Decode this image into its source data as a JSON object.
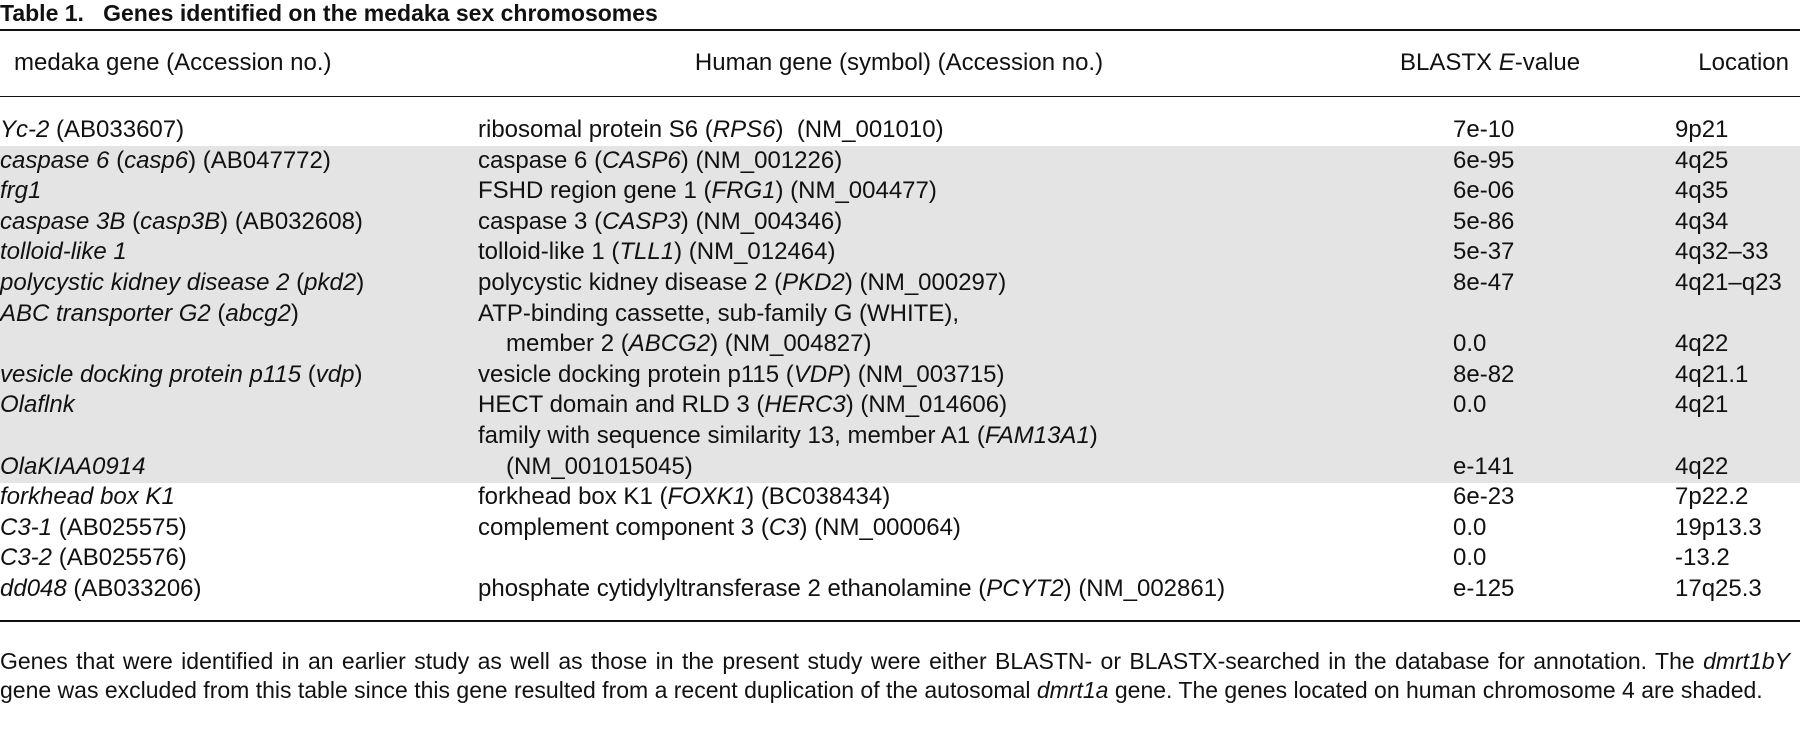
{
  "table": {
    "label": "Table 1.",
    "title": "Genes identified on the medaka sex chromosomes",
    "header": [
      "medaka gene (Accession no.)",
      "Human gene (symbol) (Accession no.)",
      [
        {
          "text": "BLASTX "
        },
        {
          "text": "E",
          "italic": true
        },
        {
          "text": "-value"
        }
      ],
      "Location"
    ],
    "rows": [
      {
        "shaded": false,
        "cells": [
          [
            [
              {
                "text": "Yc-2",
                "italic": true
              },
              {
                "text": " (AB033607)"
              }
            ]
          ],
          [
            [
              {
                "text": "ribosomal protein S6 ("
              },
              {
                "text": "RPS6",
                "italic": true
              },
              {
                "text": ")  (NM_001010)"
              }
            ]
          ],
          "7e-10",
          "9p21"
        ]
      },
      {
        "shaded": true,
        "cells": [
          [
            [
              {
                "text": "caspase 6",
                "italic": true
              },
              {
                "text": " ("
              },
              {
                "text": "casp6",
                "italic": true
              },
              {
                "text": ") (AB047772)"
              }
            ]
          ],
          [
            [
              {
                "text": "caspase 6 ("
              },
              {
                "text": "CASP6",
                "italic": true
              },
              {
                "text": ") (NM_001226)"
              }
            ]
          ],
          "6e-95",
          "4q25"
        ]
      },
      {
        "shaded": true,
        "cells": [
          [
            [
              {
                "text": "frg1",
                "italic": true
              }
            ]
          ],
          [
            [
              {
                "text": "FSHD region gene 1 ("
              },
              {
                "text": "FRG1",
                "italic": true
              },
              {
                "text": ") (NM_004477)"
              }
            ]
          ],
          "6e-06",
          "4q35"
        ]
      },
      {
        "shaded": true,
        "cells": [
          [
            [
              {
                "text": "caspase 3B",
                "italic": true
              },
              {
                "text": " ("
              },
              {
                "text": "casp3B",
                "italic": true
              },
              {
                "text": ") (AB032608)"
              }
            ]
          ],
          [
            [
              {
                "text": "caspase 3 ("
              },
              {
                "text": "CASP3",
                "italic": true
              },
              {
                "text": ") (NM_004346)"
              }
            ]
          ],
          "5e-86",
          "4q34"
        ]
      },
      {
        "shaded": true,
        "cells": [
          [
            [
              {
                "text": "tolloid-like 1",
                "italic": true
              }
            ]
          ],
          [
            [
              {
                "text": "tolloid-like 1 ("
              },
              {
                "text": "TLL1",
                "italic": true
              },
              {
                "text": ") (NM_012464)"
              }
            ]
          ],
          "5e-37",
          "4q32–33"
        ]
      },
      {
        "shaded": true,
        "cells": [
          [
            [
              {
                "text": "polycystic kidney disease 2",
                "italic": true
              },
              {
                "text": " ("
              },
              {
                "text": "pkd2",
                "italic": true
              },
              {
                "text": ")"
              }
            ]
          ],
          [
            [
              {
                "text": "polycystic kidney disease 2 ("
              },
              {
                "text": "PKD2",
                "italic": true
              },
              {
                "text": ") (NM_000297)"
              }
            ]
          ],
          "8e-47",
          "4q21–q23"
        ]
      },
      {
        "shaded": true,
        "cells": [
          [
            [
              {
                "text": "ABC transporter G2",
                "italic": true
              },
              {
                "text": " ("
              },
              {
                "text": "abcg2",
                "italic": true
              },
              {
                "text": ")"
              }
            ]
          ],
          [
            "ATP-binding cassette, sub-family G (WHITE),",
            [
              {
                "text": "member 2 ("
              },
              {
                "text": "ABCG2",
                "italic": true
              },
              {
                "text": ") (NM_004827)"
              }
            ]
          ],
          [
            null,
            "0.0"
          ],
          [
            null,
            "4q22"
          ]
        ]
      },
      {
        "shaded": true,
        "cells": [
          [
            [
              {
                "text": "vesicle docking protein p115",
                "italic": true
              },
              {
                "text": " ("
              },
              {
                "text": "vdp",
                "italic": true
              },
              {
                "text": ")"
              }
            ]
          ],
          [
            [
              {
                "text": "vesicle docking protein p115 ("
              },
              {
                "text": "VDP",
                "italic": true
              },
              {
                "text": ") (NM_003715)"
              }
            ]
          ],
          "8e-82",
          "4q21.1"
        ]
      },
      {
        "shaded": true,
        "cells": [
          [
            [
              {
                "text": "Olaflnk",
                "italic": true
              }
            ]
          ],
          [
            [
              {
                "text": "HECT domain and RLD 3 ("
              },
              {
                "text": "HERC3",
                "italic": true
              },
              {
                "text": ") (NM_014606)"
              }
            ]
          ],
          "0.0",
          "4q21"
        ]
      },
      {
        "shaded": true,
        "cells": [
          [
            null,
            [
              {
                "text": "OlaKIAA0914",
                "italic": true
              }
            ]
          ],
          [
            [
              {
                "text": "family with sequence similarity 13, member A1 ("
              },
              {
                "text": "FAM13A1",
                "italic": true
              },
              {
                "text": ")"
              }
            ],
            "(NM_001015045)"
          ],
          [
            null,
            "e-141"
          ],
          [
            null,
            "4q22"
          ]
        ]
      },
      {
        "shaded": false,
        "cells": [
          [
            [
              {
                "text": "forkhead box K1",
                "italic": true
              }
            ]
          ],
          [
            [
              {
                "text": "forkhead box K1 ("
              },
              {
                "text": "FOXK1",
                "italic": true
              },
              {
                "text": ") (BC038434)"
              }
            ]
          ],
          "6e-23",
          "7p22.2"
        ]
      },
      {
        "shaded": false,
        "cells": [
          [
            [
              {
                "text": "C3-1",
                "italic": true
              },
              {
                "text": " (AB025575)"
              }
            ]
          ],
          [
            [
              {
                "text": "complement component 3 ("
              },
              {
                "text": "C3",
                "italic": true
              },
              {
                "text": ") (NM_000064)"
              }
            ]
          ],
          "0.0",
          "19p13.3"
        ]
      },
      {
        "shaded": false,
        "cells": [
          [
            [
              {
                "text": "C3-2",
                "italic": true
              },
              {
                "text": " (AB025576)"
              }
            ]
          ],
          null,
          "0.0",
          "-13.2"
        ]
      },
      {
        "shaded": false,
        "cells": [
          [
            [
              {
                "text": "dd048",
                "italic": true
              },
              {
                "text": " (AB033206)"
              }
            ]
          ],
          [
            [
              {
                "text": "phosphate cytidylyltransferase 2 ethanolamine ("
              },
              {
                "text": "PCYT2",
                "italic": true
              },
              {
                "text": ") (NM_002861)"
              }
            ]
          ],
          "e-125",
          "17q25.3"
        ]
      }
    ],
    "footnote": [
      {
        "text": "Genes that were identified in an earlier study as well as those in the present study were either BLASTN- or BLASTX-searched in the database for annotation. The "
      },
      {
        "text": "dmrt1bY",
        "italic": true
      },
      {
        "text": " gene was excluded from this table since this gene resulted from a recent duplication of the autosomal "
      },
      {
        "text": "dmrt1a",
        "italic": true
      },
      {
        "text": " gene. The genes located on human chromosome 4 are shaded."
      }
    ]
  }
}
